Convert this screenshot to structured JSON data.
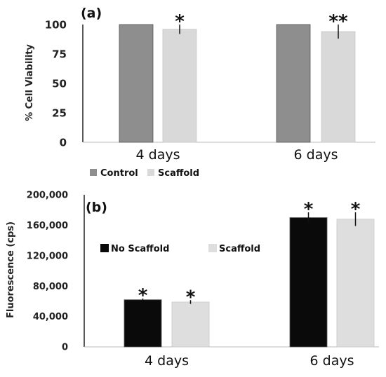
{
  "chart_data": [
    {
      "type": "bar",
      "panel_label": "(a)",
      "ylabel": "% Cell Viability",
      "ylim": [
        0,
        100
      ],
      "yticks": [
        "0",
        "25",
        "50",
        "75",
        "100"
      ],
      "categories": [
        "4 days",
        "6 days"
      ],
      "series": [
        {
          "name": "Control",
          "color": "#8e8e8e",
          "values": [
            100,
            100
          ],
          "errors": [
            0,
            0
          ],
          "annotations": [
            "",
            ""
          ]
        },
        {
          "name": "Scaffold",
          "color": "#d9d9d9",
          "values": [
            96,
            94
          ],
          "errors": [
            4,
            6
          ],
          "annotations": [
            "*",
            "**"
          ]
        }
      ],
      "legend_position": "bottom-left"
    },
    {
      "type": "bar",
      "panel_label": "(b)",
      "ylabel": "Fluorescence (cps)",
      "ylim": [
        0,
        200000
      ],
      "yticks": [
        "0",
        "40,000",
        "80,000",
        "120,000",
        "160,000",
        "200,000"
      ],
      "categories": [
        "4 days",
        "6 days"
      ],
      "series": [
        {
          "name": "No Scaffold",
          "color": "#0a0a0a",
          "values": [
            62000,
            170000
          ],
          "errors": [
            1500,
            7000
          ],
          "annotations": [
            "*",
            "*"
          ]
        },
        {
          "name": "Scaffold",
          "color": "#dedede",
          "values": [
            59000,
            168000
          ],
          "errors": [
            2500,
            9000
          ],
          "annotations": [
            "*",
            "*"
          ]
        }
      ],
      "legend_position": "top-left"
    }
  ]
}
